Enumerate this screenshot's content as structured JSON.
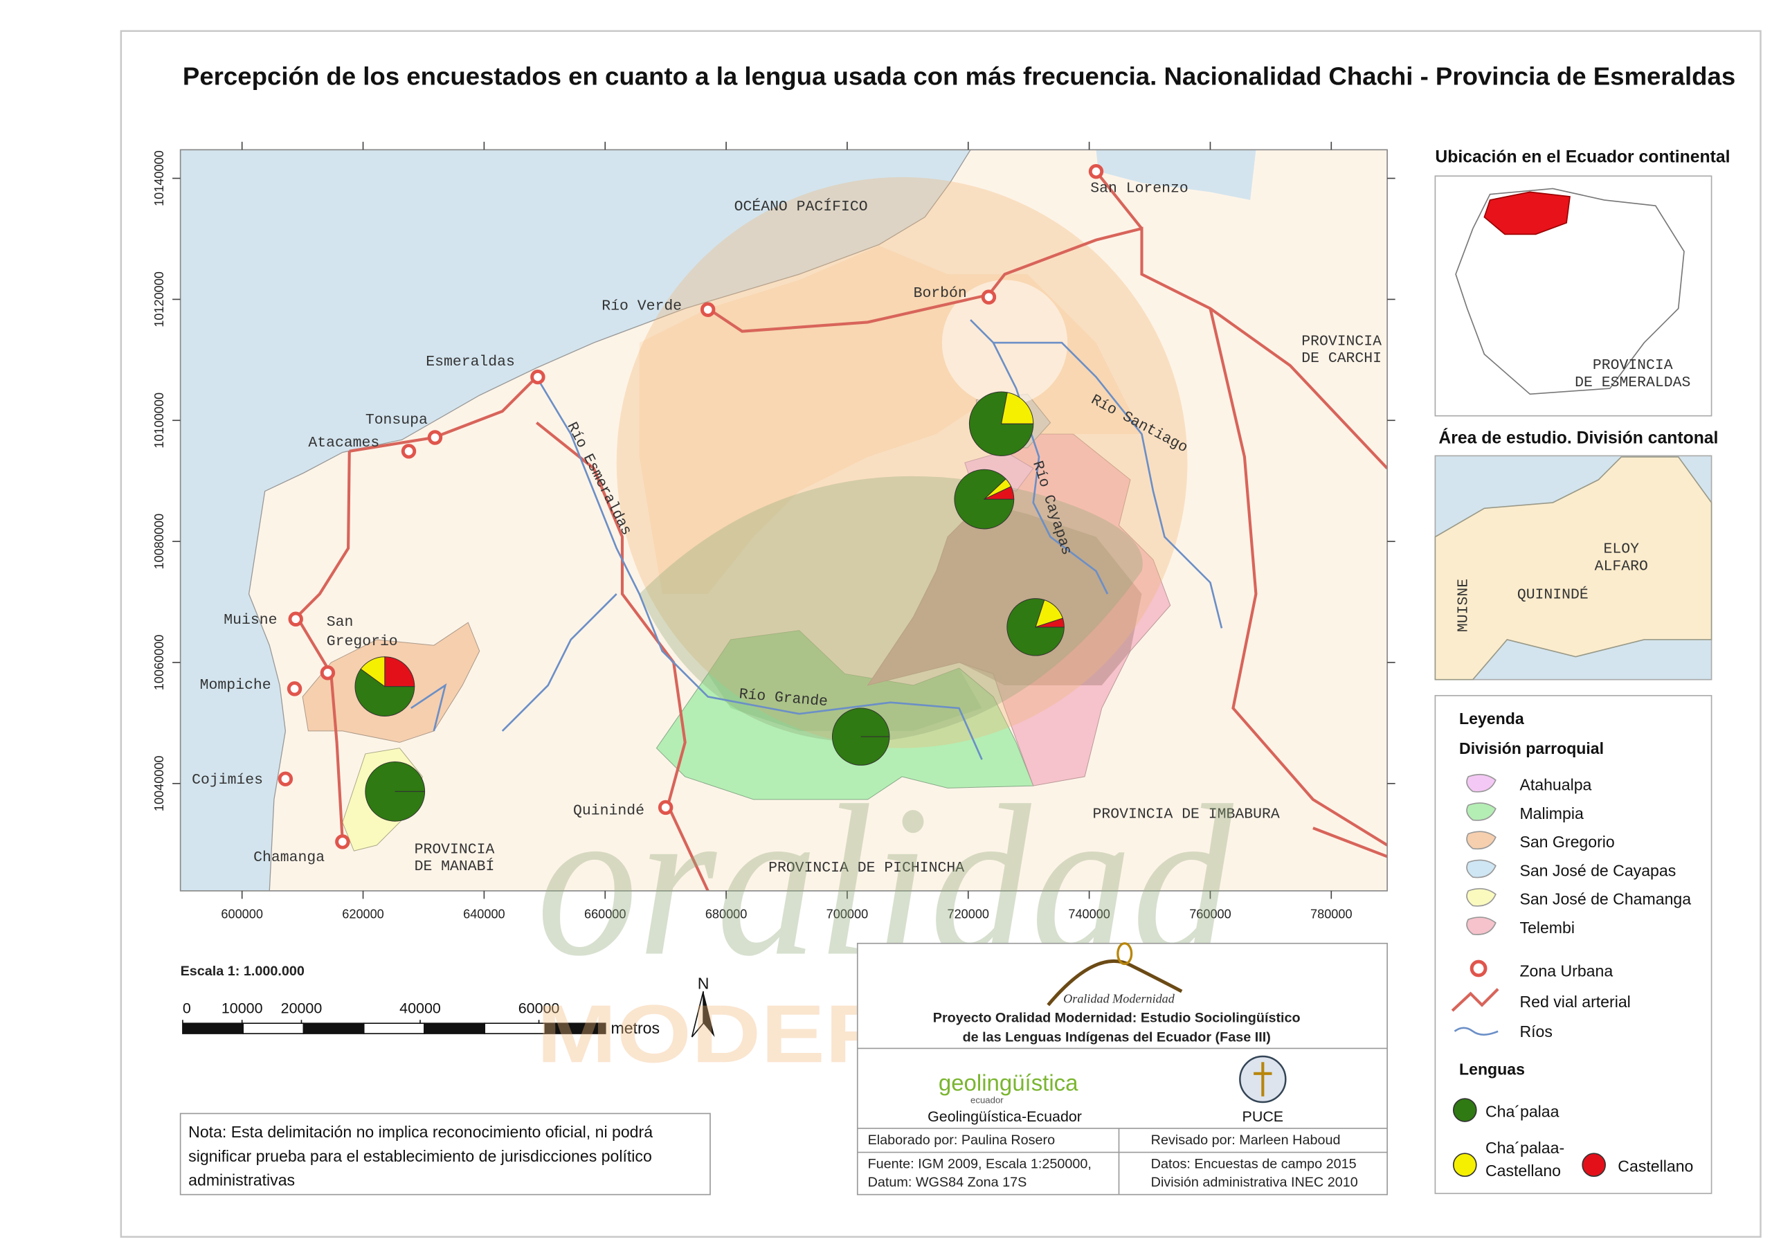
{
  "title": "Percepción de los encuestados en cuanto a la lengua usada con más frecuencia. Nacionalidad Chachi - Provincia de Esmeraldas",
  "map": {
    "xticks": [
      600000,
      620000,
      640000,
      660000,
      680000,
      700000,
      720000,
      740000,
      760000,
      780000
    ],
    "yticks": [
      10040000,
      10060000,
      10080000,
      10100000,
      10120000,
      10140000
    ],
    "places": [
      "San Lorenzo",
      "Borbón",
      "Río Verde",
      "Esmeraldas",
      "Tonsupa",
      "Atacames",
      "Muisne",
      "Mompiche",
      "Cojimíes",
      "Chamanga",
      "Quinindé"
    ],
    "san_gregorio": [
      "San",
      "Gregorio"
    ],
    "ocean": "OCÉANO PACÍFICO",
    "carchi": [
      "PROVINCIA",
      "DE CARCHI"
    ],
    "imbabura": "PROVINCIA DE IMBABURA",
    "pichincha": "PROVINCIA DE PICHINCHA",
    "manabi": [
      "PROVINCIA",
      "DE MANABÍ"
    ],
    "rivers": [
      "Río Esmeraldas",
      "Río Santiago",
      "Río Cayapas",
      "Río Grande"
    ],
    "pies": [
      {
        "values": [
          78,
          22,
          0
        ]
      },
      {
        "values": [
          88,
          5,
          7
        ]
      },
      {
        "values": [
          80,
          15,
          5
        ]
      },
      {
        "values": [
          60,
          15,
          25
        ]
      },
      {
        "values": [
          100,
          0,
          0
        ]
      },
      {
        "values": [
          100,
          0,
          0
        ]
      }
    ]
  },
  "inset_location": {
    "title": "Ubicación en el Ecuador continental",
    "label": [
      "PROVINCIA",
      "DE ESMERALDAS"
    ]
  },
  "inset_study_area": {
    "title": "Área de estudio. División cantonal",
    "eloy_alfaro": [
      "ELOY",
      "ALFARO"
    ],
    "quininde": "QUININDÉ",
    "muisne": "MUISNE"
  },
  "legend": {
    "title": "Leyenda",
    "parish_heading": "División parroquial",
    "parishes": [
      {
        "label": "Atahualpa",
        "color": "#f4c8f4"
      },
      {
        "label": "Malimpia",
        "color": "#b4eeb4"
      },
      {
        "label": "San Gregorio",
        "color": "#f6cfae"
      },
      {
        "label": "San José de Cayapas",
        "color": "#cfe6f4"
      },
      {
        "label": "San José de Chamanga",
        "color": "#fafabe"
      },
      {
        "label": "Telembi",
        "color": "#f6c2cb"
      }
    ],
    "symbols": [
      "Zona Urbana",
      "Red vial arterial",
      "Ríos"
    ],
    "languages_heading": "Lenguas",
    "languages": [
      {
        "label": "Cha´palaa",
        "color": "#2f7a12"
      },
      {
        "label": [
          "Cha´palaa-",
          "Castellano"
        ],
        "color": "#f5f000"
      },
      {
        "label": "Castellano",
        "color": "#e3101a"
      }
    ]
  },
  "scale": {
    "text": "Escala 1: 1.000.000",
    "ticks": [
      0,
      10000,
      20000,
      40000,
      60000
    ],
    "unit": "metros"
  },
  "north": "N",
  "note": [
    "Nota: Esta delimitación no implica reconocimiento oficial, ni podrá",
    "significar prueba para el establecimiento de jurisdicciones político",
    "administrativas"
  ],
  "credits": {
    "logo": "Oralidad Modernidad",
    "project": [
      "Proyecto Oralidad Modernidad: Estudio Sociolingüístico",
      "de las Lenguas Indígenas del Ecuador  (Fase III)"
    ],
    "geo_logo": "geolingüística",
    "geo_logo_sub": "ecuador",
    "geo": "Geolingüística-Ecuador",
    "puce": "PUCE",
    "elaborado": "Elaborado por: Paulina Rosero",
    "revisado": "Revisado por: Marleen Haboud",
    "fuente": [
      "Fuente: IGM 2009, Escala 1:250000,",
      "Datum: WGS84 Zona 17S"
    ],
    "datos": [
      "Datos: Encuestas de campo 2015",
      "División administrativa INEC 2010"
    ]
  },
  "watermark": [
    "oralidad",
    "MODERNIDAD"
  ]
}
